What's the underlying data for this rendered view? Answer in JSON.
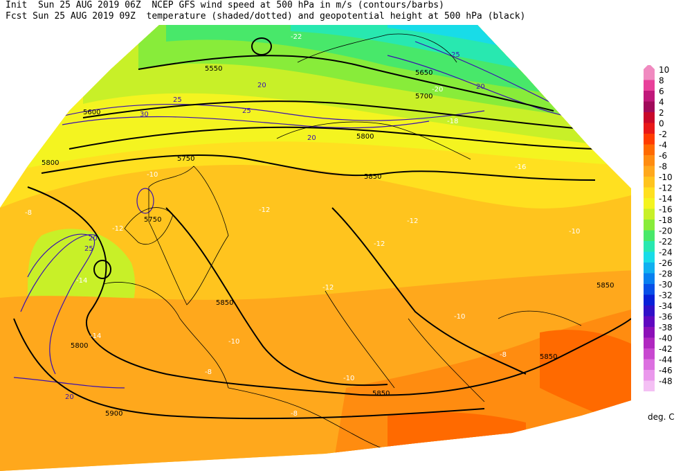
{
  "header": {
    "line1": "Init  Sun 25 AUG 2019 06Z  NCEP GFS wind speed at 500 hPa in m/s (contours/barbs)",
    "line2": "Fcst Sun 25 AUG 2019 09Z  temperature (shaded/dotted) and geopotential height at 500 hPa (black)"
  },
  "legend": {
    "unit": "deg. C",
    "entries": [
      {
        "label": "10",
        "color": "#f08ac0"
      },
      {
        "label": "8",
        "color": "#e8409a"
      },
      {
        "label": "6",
        "color": "#c0187a"
      },
      {
        "label": "4",
        "color": "#a00a5a"
      },
      {
        "label": "2",
        "color": "#c8082a"
      },
      {
        "label": "0",
        "color": "#e81818"
      },
      {
        "label": "-2",
        "color": "#ff3c00"
      },
      {
        "label": "-4",
        "color": "#ff6a00"
      },
      {
        "label": "-6",
        "color": "#ff8c10"
      },
      {
        "label": "-8",
        "color": "#ffa81c"
      },
      {
        "label": "-10",
        "color": "#ffc41e"
      },
      {
        "label": "-12",
        "color": "#ffe020"
      },
      {
        "label": "-14",
        "color": "#f4f420"
      },
      {
        "label": "-16",
        "color": "#c8f028"
      },
      {
        "label": "-18",
        "color": "#88ec3a"
      },
      {
        "label": "-20",
        "color": "#48e86a"
      },
      {
        "label": "-22",
        "color": "#28e8b0"
      },
      {
        "label": "-24",
        "color": "#18dce8"
      },
      {
        "label": "-26",
        "color": "#10b0f0"
      },
      {
        "label": "-28",
        "color": "#0880f0"
      },
      {
        "label": "-30",
        "color": "#0850e8"
      },
      {
        "label": "-32",
        "color": "#0820d8"
      },
      {
        "label": "-34",
        "color": "#3010c8"
      },
      {
        "label": "-36",
        "color": "#6008c0"
      },
      {
        "label": "-38",
        "color": "#8c10b8"
      },
      {
        "label": "-40",
        "color": "#b028c0"
      },
      {
        "label": "-42",
        "color": "#c848d0"
      },
      {
        "label": "-44",
        "color": "#dc70e0"
      },
      {
        "label": "-46",
        "color": "#ea98ec"
      },
      {
        "label": "-48",
        "color": "#f4c0f4"
      }
    ]
  },
  "map_labels": {
    "heights": [
      {
        "text": "5550"
      },
      {
        "text": "5600"
      },
      {
        "text": "5650"
      },
      {
        "text": "5700"
      },
      {
        "text": "5750"
      },
      {
        "text": "5750"
      },
      {
        "text": "5800"
      },
      {
        "text": "5850"
      },
      {
        "text": "5850"
      },
      {
        "text": "5850"
      },
      {
        "text": "5850"
      },
      {
        "text": "5900"
      },
      {
        "text": "5800"
      },
      {
        "text": "5850"
      },
      {
        "text": "5800"
      }
    ],
    "temperatures": [
      {
        "text": "-10"
      },
      {
        "text": "-12"
      },
      {
        "text": "-14"
      },
      {
        "text": "-12"
      },
      {
        "text": "-12"
      },
      {
        "text": "-12"
      },
      {
        "text": "-10"
      },
      {
        "text": "-8"
      },
      {
        "text": "-10"
      },
      {
        "text": "-10"
      },
      {
        "text": "-8"
      },
      {
        "text": "-10"
      },
      {
        "text": "-8"
      },
      {
        "text": "-8"
      },
      {
        "text": "-16"
      },
      {
        "text": "-18"
      },
      {
        "text": "-20"
      },
      {
        "text": "-14"
      },
      {
        "text": "-22"
      },
      {
        "text": "-12"
      }
    ],
    "winds": [
      {
        "text": "20"
      },
      {
        "text": "25"
      },
      {
        "text": "30"
      },
      {
        "text": "25"
      },
      {
        "text": "20"
      },
      {
        "text": "25"
      },
      {
        "text": "20"
      },
      {
        "text": "20"
      },
      {
        "text": "25"
      },
      {
        "text": "20"
      }
    ]
  }
}
